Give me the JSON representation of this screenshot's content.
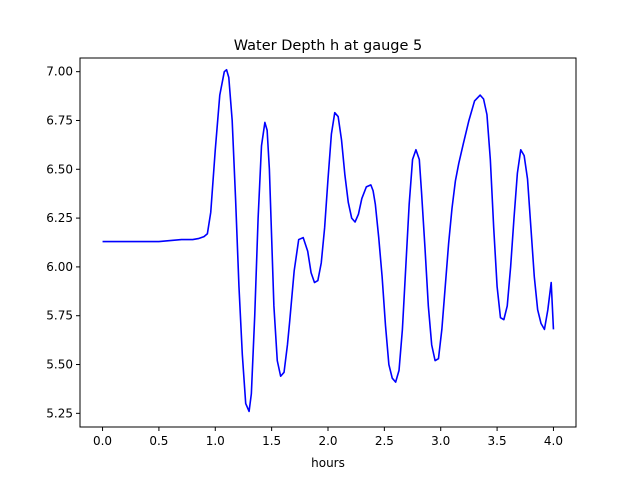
{
  "chart_data": {
    "type": "line",
    "title": "Water Depth h at gauge 5",
    "xlabel": "hours",
    "ylabel": "",
    "xlim": [
      -0.2,
      4.2
    ],
    "ylim": [
      5.18,
      7.07
    ],
    "xticks": [
      0.0,
      0.5,
      1.0,
      1.5,
      2.0,
      2.5,
      3.0,
      3.5,
      4.0
    ],
    "xtick_labels": [
      "0.0",
      "0.5",
      "1.0",
      "1.5",
      "2.0",
      "2.5",
      "3.0",
      "3.5",
      "4.0"
    ],
    "yticks": [
      5.25,
      5.5,
      5.75,
      6.0,
      6.25,
      6.5,
      6.75,
      7.0
    ],
    "ytick_labels": [
      "5.25",
      "5.50",
      "5.75",
      "6.00",
      "6.25",
      "6.50",
      "6.75",
      "7.00"
    ],
    "grid": false,
    "series": [
      {
        "color": "#0000ff",
        "x": [
          0.0,
          0.2,
          0.4,
          0.5,
          0.6,
          0.7,
          0.8,
          0.85,
          0.9,
          0.93,
          0.96,
          1.0,
          1.04,
          1.08,
          1.1,
          1.12,
          1.15,
          1.18,
          1.21,
          1.24,
          1.27,
          1.3,
          1.32,
          1.35,
          1.38,
          1.41,
          1.44,
          1.46,
          1.48,
          1.5,
          1.52,
          1.55,
          1.58,
          1.61,
          1.64,
          1.66,
          1.7,
          1.74,
          1.78,
          1.82,
          1.85,
          1.88,
          1.91,
          1.94,
          1.97,
          2.0,
          2.03,
          2.06,
          2.09,
          2.12,
          2.15,
          2.18,
          2.21,
          2.24,
          2.27,
          2.3,
          2.34,
          2.38,
          2.4,
          2.42,
          2.45,
          2.48,
          2.51,
          2.54,
          2.57,
          2.6,
          2.63,
          2.66,
          2.69,
          2.72,
          2.75,
          2.78,
          2.81,
          2.83,
          2.86,
          2.89,
          2.92,
          2.95,
          2.98,
          3.01,
          3.04,
          3.07,
          3.1,
          3.13,
          3.16,
          3.2,
          3.25,
          3.3,
          3.35,
          3.38,
          3.41,
          3.44,
          3.47,
          3.5,
          3.53,
          3.56,
          3.59,
          3.62,
          3.65,
          3.68,
          3.71,
          3.74,
          3.77,
          3.8,
          3.83,
          3.86,
          3.89,
          3.92,
          3.95,
          3.98,
          4.0
        ],
        "y": [
          6.13,
          6.13,
          6.13,
          6.13,
          6.135,
          6.14,
          6.14,
          6.145,
          6.155,
          6.17,
          6.28,
          6.6,
          6.88,
          7.0,
          7.01,
          6.97,
          6.75,
          6.35,
          5.9,
          5.55,
          5.3,
          5.26,
          5.35,
          5.75,
          6.25,
          6.62,
          6.74,
          6.7,
          6.5,
          6.15,
          5.8,
          5.52,
          5.44,
          5.46,
          5.6,
          5.72,
          5.98,
          6.14,
          6.15,
          6.08,
          5.97,
          5.92,
          5.93,
          6.02,
          6.2,
          6.45,
          6.68,
          6.79,
          6.77,
          6.65,
          6.47,
          6.33,
          6.25,
          6.23,
          6.27,
          6.35,
          6.41,
          6.42,
          6.39,
          6.32,
          6.15,
          5.95,
          5.7,
          5.5,
          5.43,
          5.41,
          5.47,
          5.68,
          6.0,
          6.32,
          6.55,
          6.6,
          6.55,
          6.38,
          6.1,
          5.8,
          5.6,
          5.52,
          5.53,
          5.68,
          5.9,
          6.12,
          6.3,
          6.44,
          6.53,
          6.63,
          6.75,
          6.85,
          6.88,
          6.86,
          6.78,
          6.55,
          6.2,
          5.9,
          5.74,
          5.73,
          5.8,
          6.0,
          6.25,
          6.48,
          6.6,
          6.57,
          6.45,
          6.2,
          5.95,
          5.78,
          5.71,
          5.68,
          5.78,
          5.92,
          5.68
        ]
      }
    ]
  }
}
